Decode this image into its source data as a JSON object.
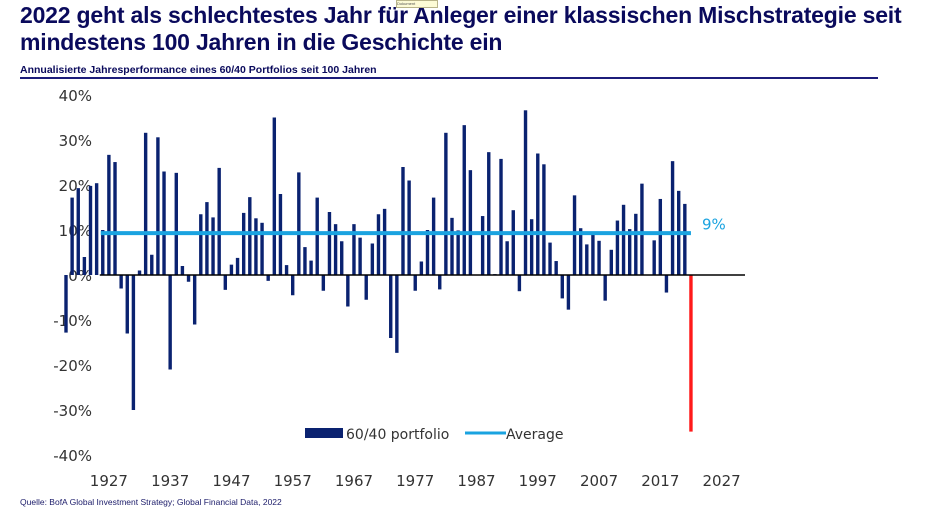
{
  "header": {
    "title": "2022 geht als schlechtestes Jahr für Anleger einer klassischen Mischstrategie seit mindestens 100 Jahren in die Geschichte ein",
    "tooltip": "Dokument verschieben",
    "subtitle": "Annualisierte Jahresperformance eines 60/40 Portfolios seit 100 Jahren"
  },
  "footer": {
    "source": "Quelle: BofA Global Investment Strategy; Global Financial Data, 2022"
  },
  "colors": {
    "bar": "#0a2270",
    "highlight_bar": "#ff1a1a",
    "average": "#1aa3e0",
    "zero_line": "#000000"
  },
  "chart_data": {
    "type": "bar",
    "title": "Annualisierte Jahresperformance eines 60/40 Portfolios seit 100 Jahren",
    "xlabel": "",
    "ylabel": "",
    "ylim": [
      -40,
      40
    ],
    "xlim": [
      1920,
      2030
    ],
    "yticks": [
      40,
      30,
      20,
      10,
      0,
      -10,
      -20,
      -30,
      -40
    ],
    "ytick_labels": [
      "40%",
      "30%",
      "20%",
      "10%",
      "0%",
      "-10%",
      "-20%",
      "-30%",
      "-40%"
    ],
    "xticks": [
      1927,
      1937,
      1947,
      1957,
      1967,
      1977,
      1987,
      1997,
      2007,
      2017,
      2027
    ],
    "xtick_labels": [
      "1927",
      "1937",
      "1947",
      "1957",
      "1967",
      "1977",
      "1987",
      "1997",
      "2007",
      "2017",
      "2027"
    ],
    "grid": false,
    "legend": {
      "placement": "bottom-center",
      "entries": [
        "60/40 portfolio",
        "Average"
      ]
    },
    "start_year": 1920,
    "highlight_year": 2022,
    "series": [
      {
        "name": "60/40 portfolio",
        "values": [
          -12.8,
          17.2,
          19.3,
          4,
          19.8,
          20.4,
          10,
          26.7,
          25.1,
          -3,
          -13,
          -30,
          1,
          31.6,
          4.5,
          30.6,
          23,
          -21,
          22.7,
          2,
          -1.5,
          -11,
          13.5,
          16.2,
          12.8,
          23.8,
          -3.3,
          2.3,
          3.8,
          13.8,
          17.3,
          12.6,
          11.6,
          -1.3,
          35,
          18,
          2.2,
          -4.5,
          22.8,
          6.2,
          3.2,
          17.2,
          -3.5,
          14,
          11.3,
          7.5,
          -7,
          11.3,
          8.3,
          -5.5,
          7,
          13.5,
          14.7,
          -14,
          -17.3,
          24,
          21,
          -3.5,
          3,
          10,
          17.2,
          -3.2,
          31.6,
          12.7,
          9.9,
          33.3,
          23.3,
          0,
          13.1,
          27.3,
          0.2,
          25.8,
          7.5,
          14.4,
          -3.6,
          36.6,
          12.4,
          27,
          24.6,
          7.2,
          3.1,
          -5.2,
          -7.7,
          17.7,
          10.4,
          6.8,
          9,
          7.6,
          -5.7,
          5.6,
          12.1,
          15.6,
          10.2,
          13.6,
          20.3,
          0,
          7.7,
          16.9,
          -3.9,
          25.3,
          18.7,
          15.8,
          -34.8
        ]
      },
      {
        "name": "Average",
        "value": 9,
        "x_range": [
          1926,
          2022
        ]
      }
    ],
    "annotations": [
      {
        "text": "9%",
        "refers_to": "Average"
      }
    ]
  }
}
